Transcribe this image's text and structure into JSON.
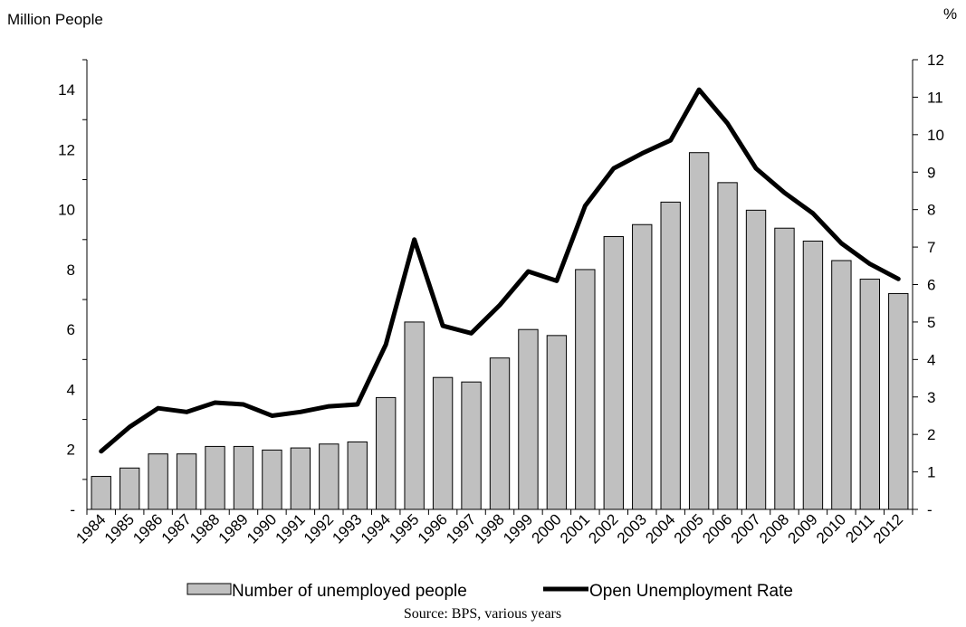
{
  "chart_data": {
    "type": "bar",
    "categories": [
      "1984",
      "1985",
      "1986",
      "1987",
      "1988",
      "1989",
      "1990",
      "1991",
      "1992",
      "1993",
      "1994",
      "1995",
      "1996",
      "1997",
      "1998",
      "1999",
      "2000",
      "2001",
      "2002",
      "2003",
      "2004",
      "2005",
      "2006",
      "2007",
      "2008",
      "2009",
      "2010",
      "2011",
      "2012"
    ],
    "series": [
      {
        "name": "Number of unemployed people",
        "type": "bar",
        "axis": "left",
        "color": "#c0c0c0",
        "values": [
          1.1,
          1.38,
          1.85,
          1.85,
          2.1,
          2.1,
          1.98,
          2.05,
          2.18,
          2.25,
          3.73,
          6.25,
          4.4,
          4.25,
          5.05,
          6.0,
          5.8,
          8.0,
          9.1,
          9.5,
          10.25,
          11.9,
          10.9,
          9.98,
          9.38,
          8.95,
          8.3,
          7.68,
          7.2
        ]
      },
      {
        "name": "Open Unemployment Rate",
        "type": "line",
        "axis": "right",
        "color": "#000000",
        "values": [
          1.55,
          2.2,
          2.7,
          2.6,
          2.85,
          2.8,
          2.5,
          2.6,
          2.75,
          2.8,
          4.4,
          7.2,
          4.9,
          4.7,
          5.45,
          6.35,
          6.1,
          8.1,
          9.1,
          9.5,
          9.85,
          11.2,
          10.3,
          9.1,
          8.45,
          7.9,
          7.1,
          6.55,
          6.15
        ]
      }
    ],
    "ylabel": "Million People",
    "y2label": "%",
    "ylim": [
      0,
      15
    ],
    "y2lim": [
      0,
      12
    ],
    "yticks": [
      {
        "value": 0,
        "label": "-"
      },
      {
        "value": 2,
        "label": "2"
      },
      {
        "value": 4,
        "label": "4"
      },
      {
        "value": 6,
        "label": "6"
      },
      {
        "value": 8,
        "label": "8"
      },
      {
        "value": 10,
        "label": "10"
      },
      {
        "value": 12,
        "label": "12"
      },
      {
        "value": 14,
        "label": "14"
      }
    ],
    "y2ticks": [
      {
        "value": 0,
        "label": "-"
      },
      {
        "value": 1,
        "label": "1"
      },
      {
        "value": 2,
        "label": "2"
      },
      {
        "value": 3,
        "label": "3"
      },
      {
        "value": 4,
        "label": "4"
      },
      {
        "value": 5,
        "label": "5"
      },
      {
        "value": 6,
        "label": "6"
      },
      {
        "value": 7,
        "label": "7"
      },
      {
        "value": 8,
        "label": "8"
      },
      {
        "value": 9,
        "label": "9"
      },
      {
        "value": 10,
        "label": "10"
      },
      {
        "value": 11,
        "label": "11"
      },
      {
        "value": 12,
        "label": "12"
      }
    ],
    "grid": false,
    "legend_position": "bottom",
    "source": "Source: BPS, various years"
  }
}
